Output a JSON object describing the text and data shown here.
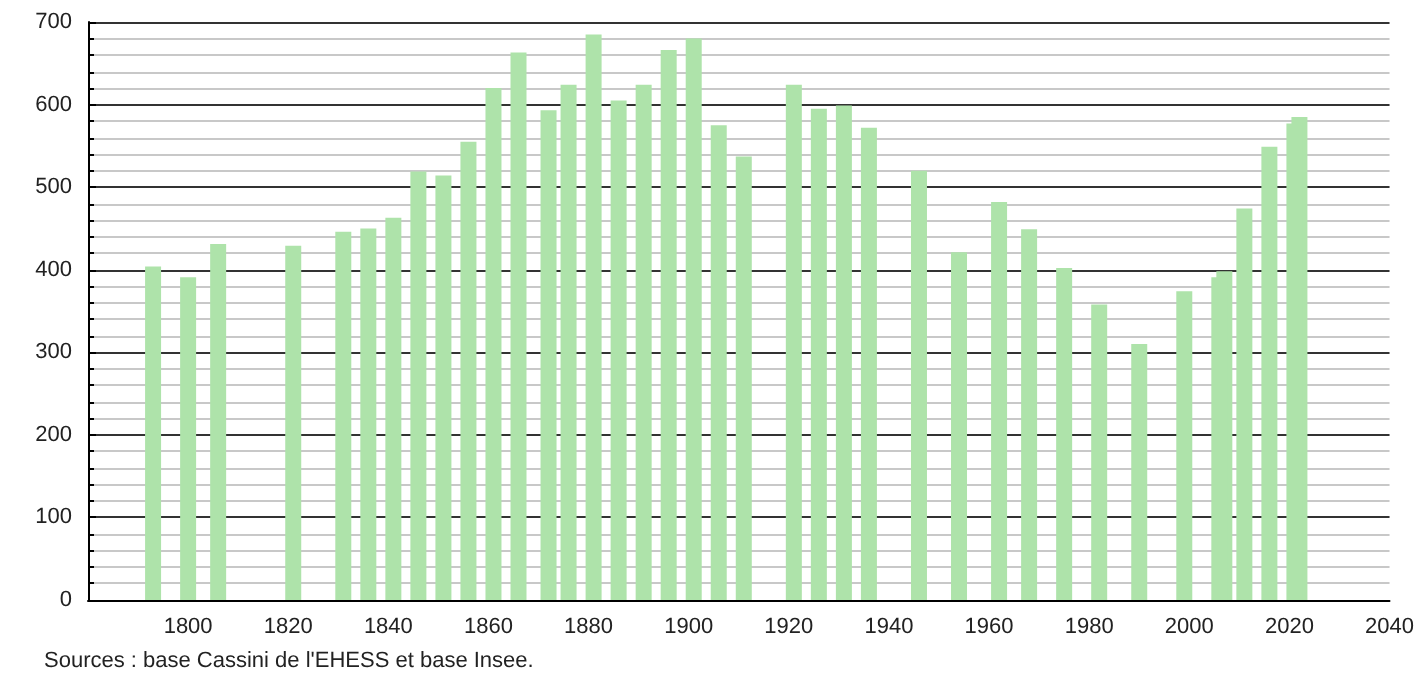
{
  "chart_data": {
    "type": "bar",
    "x": [
      1793,
      1800,
      1806,
      1821,
      1831,
      1836,
      1841,
      1846,
      1851,
      1856,
      1861,
      1866,
      1872,
      1876,
      1881,
      1886,
      1891,
      1896,
      1901,
      1906,
      1911,
      1921,
      1926,
      1931,
      1936,
      1946,
      1954,
      1962,
      1968,
      1975,
      1982,
      1990,
      1999,
      2006,
      2007,
      2011,
      2016,
      2021,
      2022
    ],
    "values": [
      404,
      391,
      431,
      429,
      446,
      450,
      463,
      519,
      514,
      555,
      620,
      663,
      593,
      624,
      685,
      605,
      624,
      666,
      680,
      575,
      537,
      624,
      595,
      599,
      572,
      520,
      421,
      482,
      449,
      402,
      358,
      310,
      374,
      391,
      398,
      474,
      549,
      577,
      585
    ],
    "color": "#aee3aa",
    "xlim": [
      1780,
      2040
    ],
    "xticks": [
      1800,
      1820,
      1840,
      1860,
      1880,
      1900,
      1920,
      1940,
      1960,
      1980,
      2000,
      2020,
      2040
    ],
    "ylim": [
      0,
      700
    ],
    "yticks": [
      0,
      100,
      200,
      300,
      400,
      500,
      600,
      700
    ],
    "grid": "y",
    "annotations": [
      "Sources : base Cassini de l'EHESS et base Insee."
    ]
  }
}
